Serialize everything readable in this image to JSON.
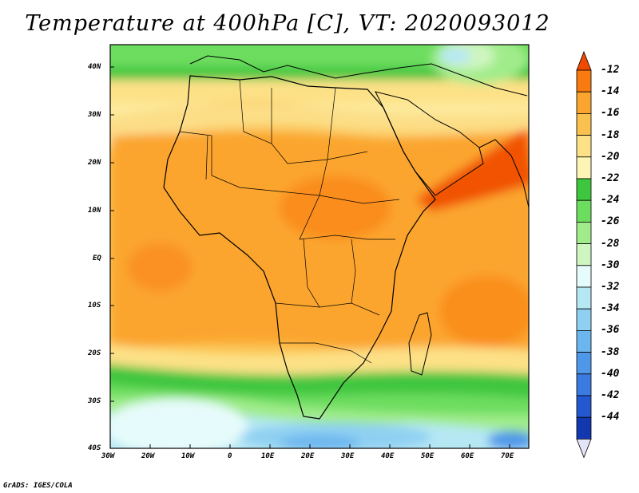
{
  "title": "Temperature at 400hPa [C], VT: 2020093012",
  "credit": "GrADS: IGES/COLA",
  "map": {
    "lon_labels": [
      "30W",
      "20W",
      "10W",
      "0",
      "10E",
      "20E",
      "30E",
      "40E",
      "50E",
      "60E",
      "70E"
    ],
    "lat_labels": [
      "40N",
      "30N",
      "20N",
      "10N",
      "EQ",
      "10S",
      "20S",
      "30S",
      "40S"
    ]
  },
  "colorbar": {
    "labels": [
      "-12",
      "-14",
      "-16",
      "-18",
      "-20",
      "-22",
      "-24",
      "-26",
      "-28",
      "-30",
      "-32",
      "-34",
      "-36",
      "-38",
      "-40",
      "-42",
      "-44"
    ],
    "colors": [
      "#f04a00",
      "#f97a0f",
      "#fba52e",
      "#fbc14e",
      "#fde187",
      "#fdf5b6",
      "#3fc63f",
      "#6ddd5f",
      "#a0ec8b",
      "#cff5c0",
      "#e6fbfb",
      "#b6e8f4",
      "#8fd0f2",
      "#6cb6ef",
      "#4f98e9",
      "#3b7ae0",
      "#2458d0",
      "#1238b0",
      "#0a1a7e"
    ]
  }
}
